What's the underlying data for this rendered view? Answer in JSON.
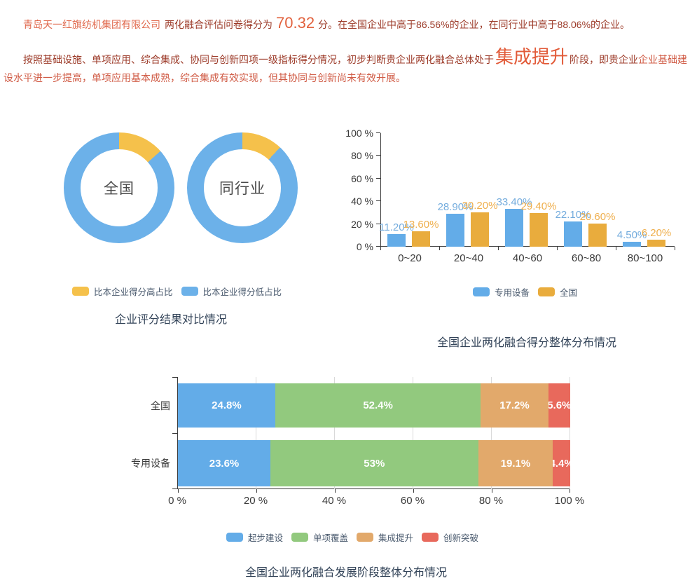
{
  "page": {
    "p1": {
      "company": "青岛天一红旗纺机集团有限公司",
      "mid": "两化融合评估问卷得分为",
      "score": "70.32",
      "tail": "分。在全国企业中高于86.56%的企业，在同行业中高于88.06%的企业。"
    },
    "p2": {
      "lead": "按照基础设施、单项应用、综合集成、协同与创新四项一级指标得分情况，初步判断贵企业两化融合总体处于",
      "stage": "集成提升",
      "mid": "阶段，即贵企业",
      "tail": "企业基础建设水平进一步提高，单项应用基本成熟，综合集成有效实现，但其协同与创新尚未有效开展。"
    }
  },
  "colors": {
    "blue": "#63ACE8",
    "donut_blue": "#6CB1E9",
    "yellow": "#F5C14B",
    "bar_orange": "#E9AC3D",
    "green": "#92C97E",
    "stack_orange": "#E2A96B",
    "red": "#E8695C",
    "blue_label": "#74ACDD",
    "orange_label": "#EFAF4D",
    "title": "#324358"
  },
  "chart_data": [
    {
      "type": "pie",
      "variant": "donut",
      "title": "企业评分结果对比情况",
      "legend": [
        {
          "label": "比本企业得分高占比",
          "color": "#F5C14B"
        },
        {
          "label": "比本企业得分低占比",
          "color": "#6CB1E9"
        }
      ],
      "donuts": [
        {
          "center_label": "全国",
          "slices": [
            {
              "name": "比本企业得分高占比",
              "value": 13.44,
              "color": "#F5C14B"
            },
            {
              "name": "比本企业得分低占比",
              "value": 86.56,
              "color": "#6CB1E9"
            }
          ]
        },
        {
          "center_label": "同行业",
          "slices": [
            {
              "name": "比本企业得分高占比",
              "value": 11.94,
              "color": "#F5C14B"
            },
            {
              "name": "比本企业得分低占比",
              "value": 88.06,
              "color": "#6CB1E9"
            }
          ]
        }
      ]
    },
    {
      "type": "bar",
      "title": "全国企业两化融合得分整体分布情况",
      "categories": [
        "0~20",
        "20~40",
        "40~60",
        "60~80",
        "80~100"
      ],
      "series": [
        {
          "name": "专用设备",
          "color": "#63ACE8",
          "label_color": "#74ACDD",
          "values": [
            11.2,
            28.9,
            33.4,
            22.1,
            4.5
          ],
          "labels": [
            "11.20%",
            "28.90%",
            "33.40%",
            "22.10%",
            "4.50%"
          ]
        },
        {
          "name": "全国",
          "color": "#E9AC3D",
          "label_color": "#EFAF4D",
          "values": [
            13.6,
            30.2,
            29.4,
            20.6,
            6.2
          ],
          "labels": [
            "13.60%",
            "30.20%",
            "29.40%",
            "20.60%",
            "6.20%"
          ]
        }
      ],
      "ylim": [
        0,
        100
      ],
      "yticks": [
        "0 %",
        "20 %",
        "40 %",
        "60 %",
        "80 %",
        "100 %"
      ],
      "legend_position": "bottom",
      "grid": false
    },
    {
      "type": "bar",
      "orientation": "horizontal",
      "stacked": true,
      "title": "全国企业两化融合发展阶段整体分布情况",
      "categories": [
        "全国",
        "专用设备"
      ],
      "series": [
        {
          "name": "起步建设",
          "color": "#63ACE8",
          "values": [
            24.8,
            23.6
          ],
          "labels": [
            "24.8%",
            "23.6%"
          ]
        },
        {
          "name": "单项覆盖",
          "color": "#92C97E",
          "values": [
            52.4,
            53
          ],
          "labels": [
            "52.4%",
            "53%"
          ]
        },
        {
          "name": "集成提升",
          "color": "#E2A96B",
          "values": [
            17.2,
            19.1
          ],
          "labels": [
            "17.2%",
            "19.1%"
          ]
        },
        {
          "name": "创新突破",
          "color": "#E8695C",
          "values": [
            5.6,
            4.4
          ],
          "labels": [
            "5.6%",
            "4.4%"
          ]
        }
      ],
      "xlim": [
        0,
        100
      ],
      "xticks": [
        "0 %",
        "20 %",
        "40 %",
        "60 %",
        "80 %",
        "100 %"
      ],
      "legend_position": "bottom",
      "grid": true
    }
  ]
}
